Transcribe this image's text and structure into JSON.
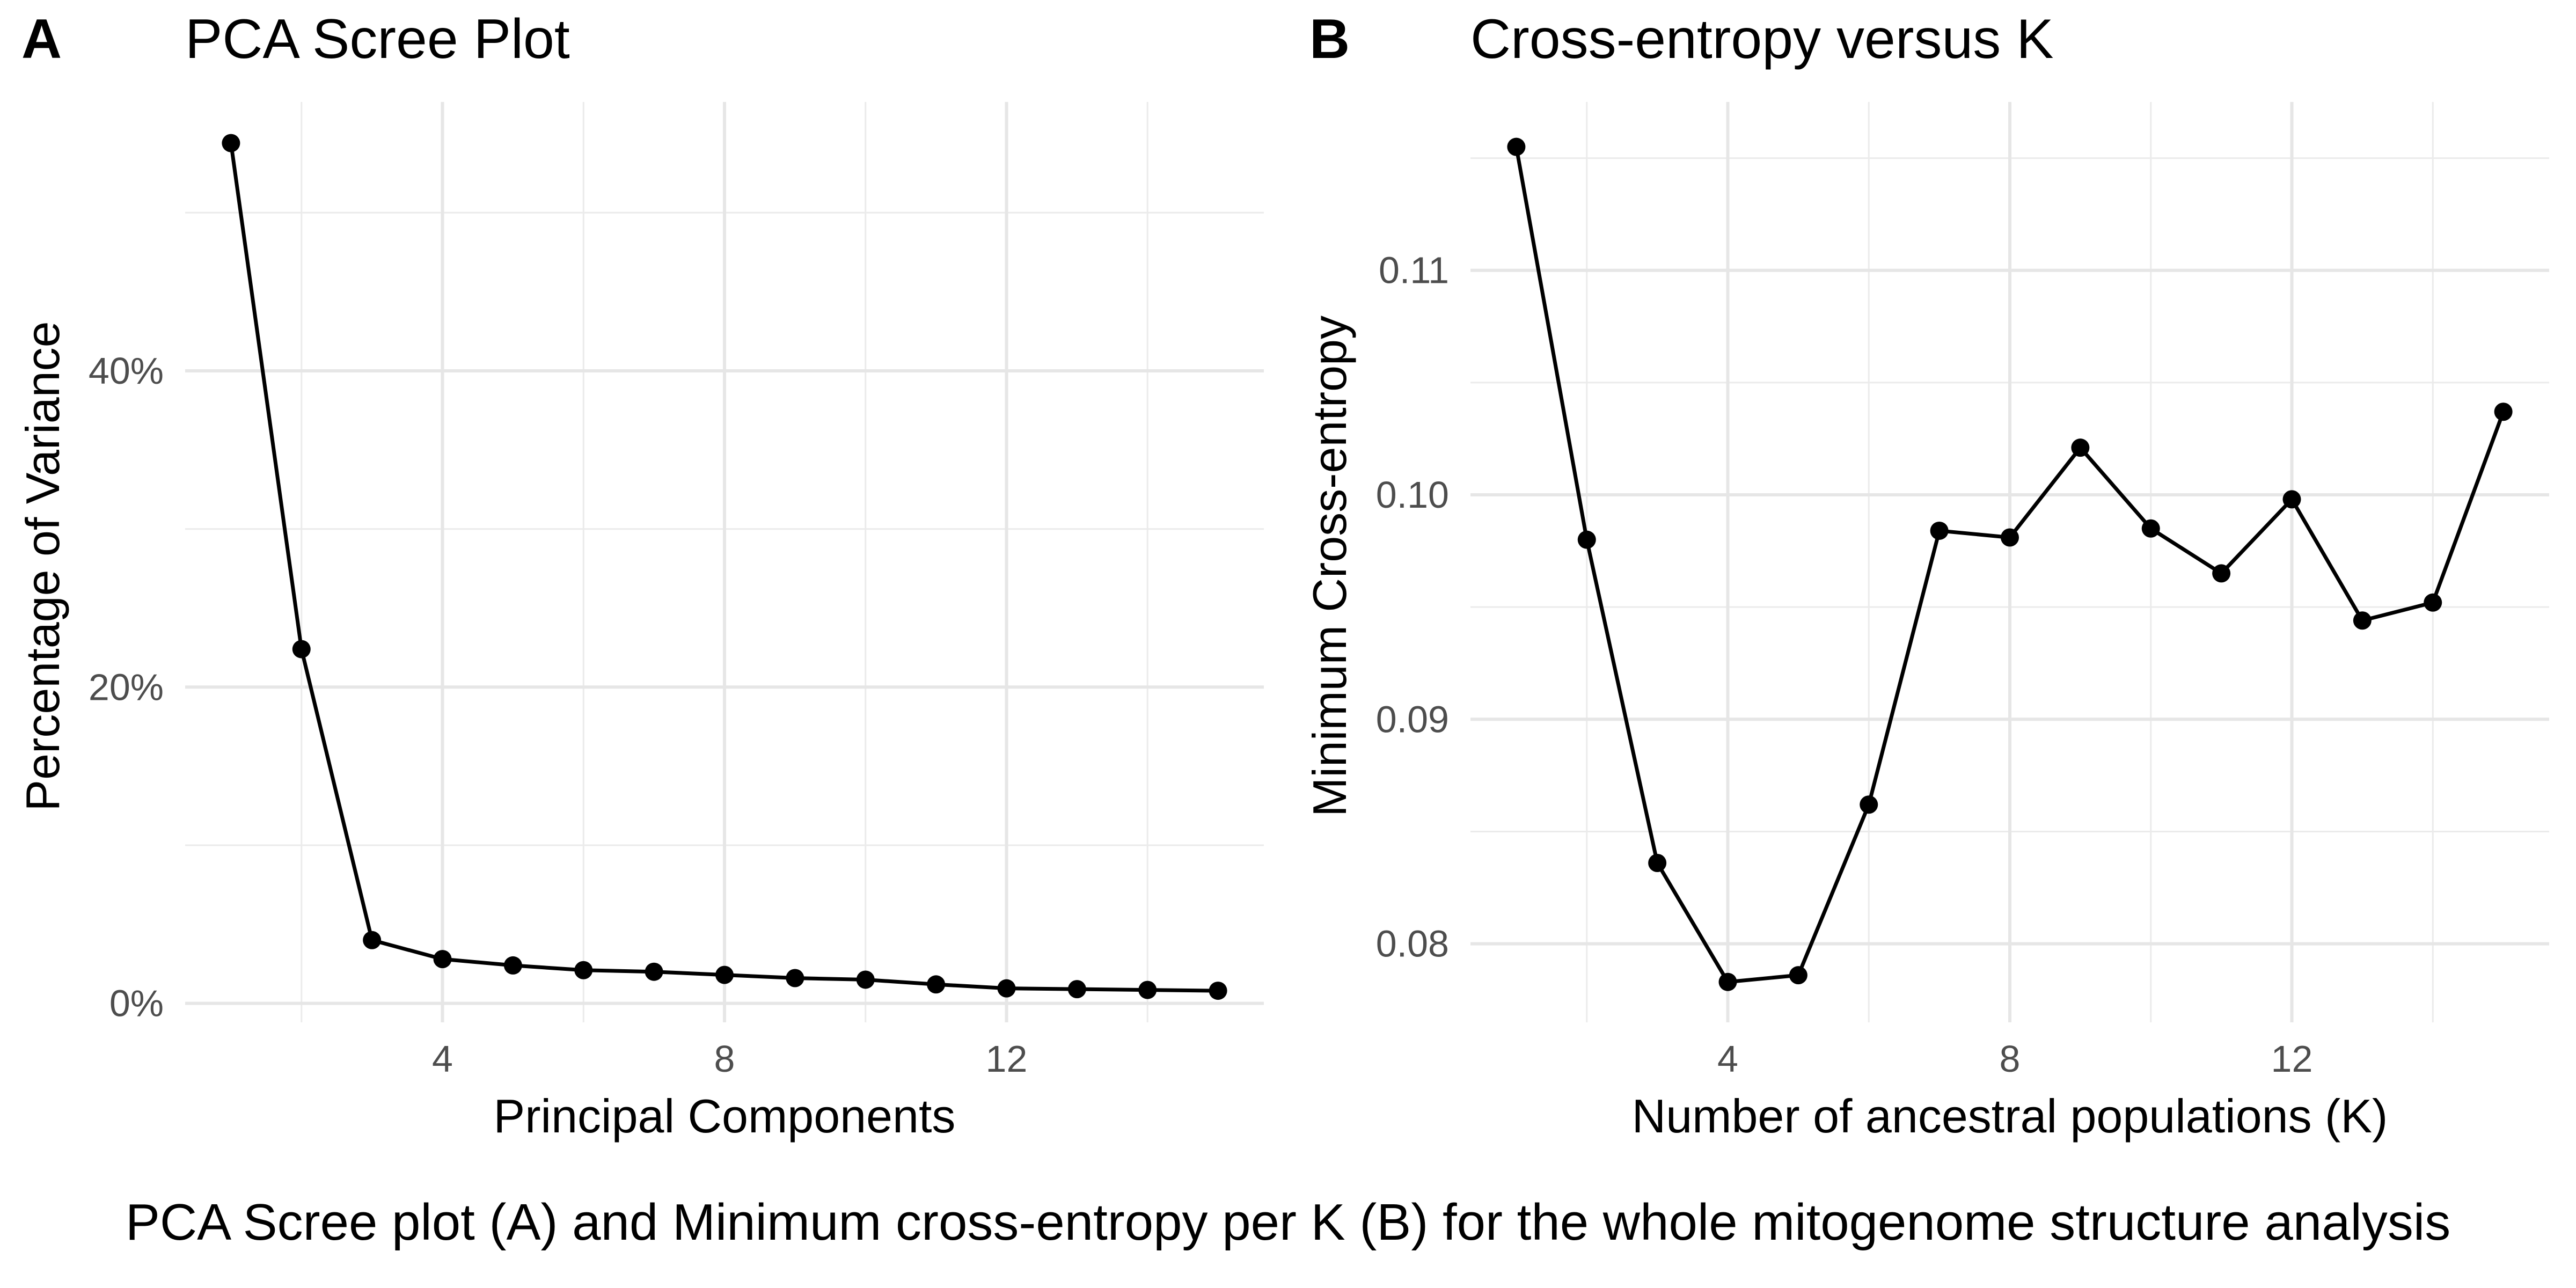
{
  "caption": "PCA Scree plot (A) and Minimum cross-entropy per K (B) for the whole mitogenome structure analysis",
  "chart_data": [
    {
      "panel_label": "A",
      "type": "line",
      "title": "PCA Scree Plot",
      "xlabel": "Principal Components",
      "ylabel": "Percentage of Variance",
      "x": [
        1,
        2,
        3,
        4,
        5,
        6,
        7,
        8,
        9,
        10,
        11,
        12,
        13,
        14,
        15
      ],
      "y": [
        54.4,
        22.4,
        4.0,
        2.8,
        2.4,
        2.1,
        2.0,
        1.8,
        1.6,
        1.5,
        1.2,
        0.95,
        0.9,
        0.85,
        0.8
      ],
      "xlim": [
        0.35,
        15.65
      ],
      "ylim": [
        -1.2,
        57.0
      ],
      "xticks": [
        4,
        8,
        12
      ],
      "xtick_labels": [
        "4",
        "8",
        "12"
      ],
      "yticks": [
        0,
        20,
        40
      ],
      "ytick_labels": [
        "0%",
        "20%",
        "40%"
      ],
      "grid": true,
      "line_color": "#000000"
    },
    {
      "panel_label": "B",
      "type": "line",
      "title": "Cross-entropy versus K",
      "xlabel": "Number of ancestral populations (K)",
      "ylabel": "Minimum Cross-entropy",
      "x": [
        1,
        2,
        3,
        4,
        5,
        6,
        7,
        8,
        9,
        10,
        11,
        12,
        13,
        14,
        15
      ],
      "y": [
        0.1155,
        0.098,
        0.0836,
        0.0783,
        0.0786,
        0.0862,
        0.0984,
        0.0981,
        0.1021,
        0.0985,
        0.0965,
        0.0998,
        0.0944,
        0.0952,
        0.1037
      ],
      "xlim": [
        0.35,
        15.65
      ],
      "ylim": [
        0.0765,
        0.1175
      ],
      "xticks": [
        4,
        8,
        12
      ],
      "xtick_labels": [
        "4",
        "8",
        "12"
      ],
      "yticks": [
        0.08,
        0.09,
        0.1,
        0.11
      ],
      "ytick_labels": [
        "0.08",
        "0.09",
        "0.10",
        "0.11"
      ],
      "grid": true,
      "line_color": "#000000"
    }
  ]
}
